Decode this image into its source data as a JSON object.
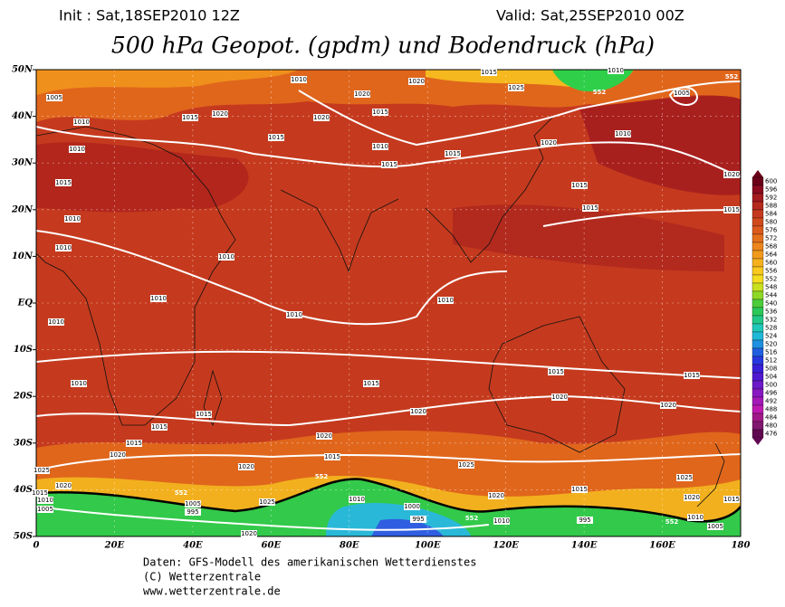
{
  "header": {
    "init": "Init : Sat,18SEP2010 12Z",
    "valid": "Valid: Sat,25SEP2010 00Z",
    "title": "500 hPa Geopot. (gpdm) und Bodendruck (hPa)"
  },
  "map": {
    "lat_labels": [
      "50N",
      "40N",
      "30N",
      "20N",
      "10N",
      "EQ",
      "10S",
      "20S",
      "30S",
      "40S",
      "50S"
    ],
    "lon_labels": [
      "0",
      "20E",
      "40E",
      "60E",
      "80E",
      "100E",
      "120E",
      "140E",
      "160E",
      "180"
    ],
    "contour_labels": [
      "1015",
      "1010",
      "1005",
      "1010",
      "1020",
      "1020",
      "1025",
      "1010",
      "1015",
      "1020",
      "1020",
      "1015",
      "1010",
      "1015",
      "1010",
      "1015",
      "1015",
      "1010",
      "1020",
      "1005",
      "1020",
      "1015",
      "1015",
      "1015",
      "1010",
      "1015",
      "1010",
      "1010",
      "1010",
      "1010",
      "1010",
      "1010",
      "1015",
      "1015",
      "1015",
      "1020",
      "1020",
      "1020",
      "1015",
      "1015",
      "1015",
      "1020",
      "1020",
      "1020",
      "1015",
      "1025",
      "1025",
      "1010",
      "1020",
      "1015",
      "1025",
      "1020",
      "1015",
      "1005",
      "995",
      "1000",
      "995",
      "1010",
      "995",
      "1010",
      "1005",
      "1020",
      "1015",
      "1010",
      "1005",
      "1025",
      "1020",
      "1010"
    ],
    "height_labels": [
      "552",
      "552",
      "552",
      "552",
      "552",
      "552"
    ]
  },
  "colorbar": {
    "labels": [
      "600",
      "596",
      "592",
      "588",
      "584",
      "580",
      "576",
      "572",
      "568",
      "564",
      "560",
      "556",
      "552",
      "548",
      "544",
      "540",
      "536",
      "532",
      "528",
      "524",
      "520",
      "516",
      "512",
      "508",
      "504",
      "500",
      "496",
      "492",
      "488",
      "484",
      "480",
      "476"
    ]
  },
  "footer": {
    "lines": [
      "Daten: GFS-Modell des amerikanischen Wetterdienstes",
      "(C) Wetterzentrale",
      "www.wetterzentrale.de"
    ]
  }
}
